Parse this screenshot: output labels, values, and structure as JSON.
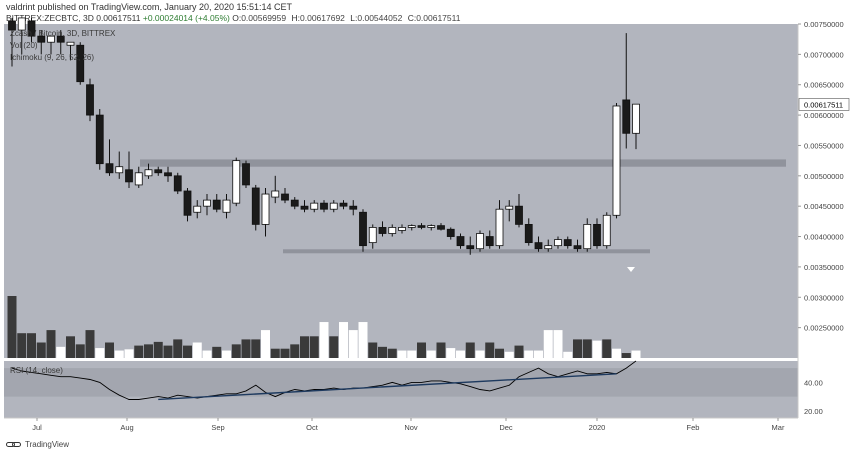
{
  "header": {
    "publisher_line": "valdrint published on TradingView.com, January 20, 2020 15:51:14 CET",
    "symbol": "BITTREX:ZECBTC, 3D",
    "last": "0.00617511",
    "change": "+0.00024014 (+4.05%)",
    "o_label": "O:",
    "o_value": "0.00569959",
    "h_label": "H:",
    "h_value": "0.00617692",
    "l_label": "L:",
    "l_value": "0.00544052",
    "c_label": "C:",
    "c_value": "0.00617511"
  },
  "legend": {
    "main": "Zcash / Bitcoin, 3D, BITTREX",
    "vol": "Vol (20)",
    "ichimoku": "Ichimoku (9, 26, 52, 26)",
    "rsi": "RSI (14, close)"
  },
  "footer": {
    "brand": "TradingView"
  },
  "colors": {
    "pane_bg": "#b2b5be",
    "rsi_band": "#a3a6af",
    "bull": "#ffffff",
    "bear": "#1a1a1a",
    "support": "#8a8d96",
    "trendline": "#1e3a5f",
    "rsi_line": "#000000",
    "price_tag_bg": "#ffffff"
  },
  "chart_data": [
    {
      "type": "candlestick",
      "ylim": [
        0.002,
        0.0075
      ],
      "y_ticks": [
        "0.00750000",
        "0.00700000",
        "0.00650000",
        "0.00600000",
        "0.00550000",
        "0.00500000",
        "0.00450000",
        "0.00400000",
        "0.00350000",
        "0.00300000",
        "0.00250000"
      ],
      "x_ticks": [
        "Jul",
        "Aug",
        "Sep",
        "Oct",
        "Nov",
        "Dec",
        "2020",
        "Feb",
        "Mar"
      ],
      "last_price_label": "0.00617511",
      "candles": [
        {
          "o": 0.00755,
          "h": 0.0076,
          "l": 0.0068,
          "c": 0.0074
        },
        {
          "o": 0.0074,
          "h": 0.0076,
          "l": 0.007,
          "c": 0.0076
        },
        {
          "o": 0.00755,
          "h": 0.0076,
          "l": 0.0072,
          "c": 0.0073
        },
        {
          "o": 0.0073,
          "h": 0.0074,
          "l": 0.007,
          "c": 0.0072
        },
        {
          "o": 0.0072,
          "h": 0.00725,
          "l": 0.007,
          "c": 0.0073
        },
        {
          "o": 0.0073,
          "h": 0.0074,
          "l": 0.007,
          "c": 0.0072
        },
        {
          "o": 0.00715,
          "h": 0.0072,
          "l": 0.0069,
          "c": 0.0072
        },
        {
          "o": 0.00715,
          "h": 0.0072,
          "l": 0.0065,
          "c": 0.00655
        },
        {
          "o": 0.0065,
          "h": 0.0066,
          "l": 0.0059,
          "c": 0.006
        },
        {
          "o": 0.006,
          "h": 0.0061,
          "l": 0.0051,
          "c": 0.0052
        },
        {
          "o": 0.0052,
          "h": 0.0056,
          "l": 0.005,
          "c": 0.00505
        },
        {
          "o": 0.00505,
          "h": 0.0054,
          "l": 0.00495,
          "c": 0.00515
        },
        {
          "o": 0.0051,
          "h": 0.0054,
          "l": 0.0048,
          "c": 0.0049
        },
        {
          "o": 0.00485,
          "h": 0.00515,
          "l": 0.0048,
          "c": 0.00505
        },
        {
          "o": 0.005,
          "h": 0.0052,
          "l": 0.00495,
          "c": 0.0051
        },
        {
          "o": 0.0051,
          "h": 0.00515,
          "l": 0.005,
          "c": 0.00505
        },
        {
          "o": 0.00505,
          "h": 0.00515,
          "l": 0.0049,
          "c": 0.005
        },
        {
          "o": 0.005,
          "h": 0.00505,
          "l": 0.0047,
          "c": 0.00475
        },
        {
          "o": 0.00475,
          "h": 0.0048,
          "l": 0.00425,
          "c": 0.00435
        },
        {
          "o": 0.0044,
          "h": 0.0046,
          "l": 0.0043,
          "c": 0.0045
        },
        {
          "o": 0.0045,
          "h": 0.0047,
          "l": 0.00435,
          "c": 0.0046
        },
        {
          "o": 0.0046,
          "h": 0.0047,
          "l": 0.0044,
          "c": 0.00445
        },
        {
          "o": 0.0044,
          "h": 0.0047,
          "l": 0.0043,
          "c": 0.0046
        },
        {
          "o": 0.00455,
          "h": 0.0053,
          "l": 0.0045,
          "c": 0.00525
        },
        {
          "o": 0.0052,
          "h": 0.00525,
          "l": 0.0048,
          "c": 0.00485
        },
        {
          "o": 0.0048,
          "h": 0.00485,
          "l": 0.0041,
          "c": 0.0042
        },
        {
          "o": 0.0042,
          "h": 0.0048,
          "l": 0.004,
          "c": 0.0047
        },
        {
          "o": 0.00465,
          "h": 0.005,
          "l": 0.00455,
          "c": 0.00475
        },
        {
          "o": 0.0047,
          "h": 0.0048,
          "l": 0.00455,
          "c": 0.0046
        },
        {
          "o": 0.0046,
          "h": 0.00465,
          "l": 0.00445,
          "c": 0.0045
        },
        {
          "o": 0.0045,
          "h": 0.0046,
          "l": 0.0044,
          "c": 0.00445
        },
        {
          "o": 0.00445,
          "h": 0.0046,
          "l": 0.0044,
          "c": 0.00455
        },
        {
          "o": 0.00455,
          "h": 0.0046,
          "l": 0.0044,
          "c": 0.00445
        },
        {
          "o": 0.00445,
          "h": 0.0046,
          "l": 0.0044,
          "c": 0.00455
        },
        {
          "o": 0.00455,
          "h": 0.0046,
          "l": 0.00445,
          "c": 0.0045
        },
        {
          "o": 0.0045,
          "h": 0.0046,
          "l": 0.00435,
          "c": 0.00445
        },
        {
          "o": 0.0044,
          "h": 0.00445,
          "l": 0.00375,
          "c": 0.00385
        },
        {
          "o": 0.0039,
          "h": 0.0042,
          "l": 0.0038,
          "c": 0.00415
        },
        {
          "o": 0.00415,
          "h": 0.00425,
          "l": 0.004,
          "c": 0.00405
        },
        {
          "o": 0.00405,
          "h": 0.0042,
          "l": 0.004,
          "c": 0.00415
        },
        {
          "o": 0.0041,
          "h": 0.0042,
          "l": 0.00405,
          "c": 0.00415
        },
        {
          "o": 0.00415,
          "h": 0.0042,
          "l": 0.0041,
          "c": 0.00418
        },
        {
          "o": 0.00418,
          "h": 0.00422,
          "l": 0.00412,
          "c": 0.00415
        },
        {
          "o": 0.00415,
          "h": 0.0042,
          "l": 0.0041,
          "c": 0.00418
        },
        {
          "o": 0.00418,
          "h": 0.00422,
          "l": 0.0041,
          "c": 0.00412
        },
        {
          "o": 0.00412,
          "h": 0.00415,
          "l": 0.00395,
          "c": 0.004
        },
        {
          "o": 0.004,
          "h": 0.00405,
          "l": 0.0038,
          "c": 0.00385
        },
        {
          "o": 0.00385,
          "h": 0.004,
          "l": 0.0037,
          "c": 0.0038
        },
        {
          "o": 0.0038,
          "h": 0.0041,
          "l": 0.00375,
          "c": 0.00405
        },
        {
          "o": 0.004,
          "h": 0.0041,
          "l": 0.0038,
          "c": 0.00385
        },
        {
          "o": 0.00385,
          "h": 0.0046,
          "l": 0.0038,
          "c": 0.00445
        },
        {
          "o": 0.00445,
          "h": 0.0046,
          "l": 0.00425,
          "c": 0.0045
        },
        {
          "o": 0.0045,
          "h": 0.0047,
          "l": 0.00415,
          "c": 0.0042
        },
        {
          "o": 0.0042,
          "h": 0.0043,
          "l": 0.00385,
          "c": 0.0039
        },
        {
          "o": 0.0039,
          "h": 0.004,
          "l": 0.00375,
          "c": 0.0038
        },
        {
          "o": 0.0038,
          "h": 0.00395,
          "l": 0.00375,
          "c": 0.00385
        },
        {
          "o": 0.00385,
          "h": 0.004,
          "l": 0.0038,
          "c": 0.00395
        },
        {
          "o": 0.00395,
          "h": 0.004,
          "l": 0.0038,
          "c": 0.00385
        },
        {
          "o": 0.00385,
          "h": 0.00395,
          "l": 0.00375,
          "c": 0.0038
        },
        {
          "o": 0.0038,
          "h": 0.0043,
          "l": 0.00375,
          "c": 0.0042
        },
        {
          "o": 0.0042,
          "h": 0.0043,
          "l": 0.0038,
          "c": 0.00385
        },
        {
          "o": 0.00385,
          "h": 0.0044,
          "l": 0.0038,
          "c": 0.00435
        },
        {
          "o": 0.00435,
          "h": 0.0062,
          "l": 0.0043,
          "c": 0.00615
        },
        {
          "o": 0.00625,
          "h": 0.00735,
          "l": 0.00545,
          "c": 0.0057
        },
        {
          "o": 0.0057,
          "h": 0.00618,
          "l": 0.00544,
          "c": 0.00618
        }
      ],
      "support_zones": [
        {
          "from": 0.00515,
          "to": 0.00527
        },
        {
          "from": 0.00374,
          "to": 0.00379
        }
      ],
      "volumes": [
        {
          "v": 1.0,
          "bull": false
        },
        {
          "v": 0.4,
          "bull": false
        },
        {
          "v": 0.4,
          "bull": false
        },
        {
          "v": 0.25,
          "bull": false
        },
        {
          "v": 0.45,
          "bull": false
        },
        {
          "v": 0.18,
          "bull": true
        },
        {
          "v": 0.35,
          "bull": false
        },
        {
          "v": 0.22,
          "bull": false
        },
        {
          "v": 0.45,
          "bull": false
        },
        {
          "v": 0.16,
          "bull": true
        },
        {
          "v": 0.25,
          "bull": false
        },
        {
          "v": 0.12,
          "bull": true
        },
        {
          "v": 0.14,
          "bull": true
        },
        {
          "v": 0.2,
          "bull": false
        },
        {
          "v": 0.22,
          "bull": false
        },
        {
          "v": 0.26,
          "bull": false
        },
        {
          "v": 0.2,
          "bull": false
        },
        {
          "v": 0.3,
          "bull": false
        },
        {
          "v": 0.2,
          "bull": false
        },
        {
          "v": 0.25,
          "bull": true
        },
        {
          "v": 0.12,
          "bull": true
        },
        {
          "v": 0.18,
          "bull": false
        },
        {
          "v": 0.12,
          "bull": true
        },
        {
          "v": 0.22,
          "bull": false
        },
        {
          "v": 0.3,
          "bull": false
        },
        {
          "v": 0.3,
          "bull": false
        },
        {
          "v": 0.45,
          "bull": true
        },
        {
          "v": 0.15,
          "bull": false
        },
        {
          "v": 0.15,
          "bull": false
        },
        {
          "v": 0.22,
          "bull": false
        },
        {
          "v": 0.35,
          "bull": false
        },
        {
          "v": 0.35,
          "bull": false
        },
        {
          "v": 0.58,
          "bull": true
        },
        {
          "v": 0.35,
          "bull": false
        },
        {
          "v": 0.58,
          "bull": true
        },
        {
          "v": 0.45,
          "bull": true
        },
        {
          "v": 0.58,
          "bull": true
        },
        {
          "v": 0.25,
          "bull": false
        },
        {
          "v": 0.18,
          "bull": false
        },
        {
          "v": 0.15,
          "bull": false
        },
        {
          "v": 0.12,
          "bull": true
        },
        {
          "v": 0.12,
          "bull": true
        },
        {
          "v": 0.25,
          "bull": false
        },
        {
          "v": 0.12,
          "bull": true
        },
        {
          "v": 0.25,
          "bull": false
        },
        {
          "v": 0.16,
          "bull": true
        },
        {
          "v": 0.12,
          "bull": true
        },
        {
          "v": 0.25,
          "bull": false
        },
        {
          "v": 0.12,
          "bull": true
        },
        {
          "v": 0.25,
          "bull": false
        },
        {
          "v": 0.15,
          "bull": false
        },
        {
          "v": 0.1,
          "bull": true
        },
        {
          "v": 0.2,
          "bull": false
        },
        {
          "v": 0.12,
          "bull": true
        },
        {
          "v": 0.12,
          "bull": true
        },
        {
          "v": 0.45,
          "bull": true
        },
        {
          "v": 0.45,
          "bull": true
        },
        {
          "v": 0.1,
          "bull": true
        },
        {
          "v": 0.3,
          "bull": false
        },
        {
          "v": 0.3,
          "bull": false
        },
        {
          "v": 0.28,
          "bull": true
        },
        {
          "v": 0.3,
          "bull": false
        },
        {
          "v": 0.15,
          "bull": true
        },
        {
          "v": 0.08,
          "bull": false
        },
        {
          "v": 0.12,
          "bull": true
        }
      ]
    },
    {
      "type": "line",
      "name": "RSI (14, close)",
      "ylim": [
        15,
        55
      ],
      "y_ticks": [
        "40.00",
        "20.00"
      ],
      "band": [
        30,
        50
      ],
      "values": [
        50,
        48,
        47,
        46,
        45,
        44,
        44,
        43,
        42,
        40,
        35,
        31,
        28,
        28,
        29,
        30,
        29,
        31,
        30,
        29,
        30,
        31,
        32,
        32,
        34,
        38,
        33,
        30,
        33,
        35,
        34,
        35,
        35,
        36,
        35,
        36,
        36,
        37,
        38,
        40,
        38,
        40,
        40,
        41,
        41,
        40,
        39,
        37,
        35,
        34,
        36,
        38,
        44,
        47,
        50,
        46,
        44,
        46,
        48,
        46,
        46,
        47,
        46,
        50,
        55
      ],
      "trendlines": [
        {
          "from": [
            15,
            28
          ],
          "to": [
            62,
            46
          ]
        }
      ]
    }
  ]
}
